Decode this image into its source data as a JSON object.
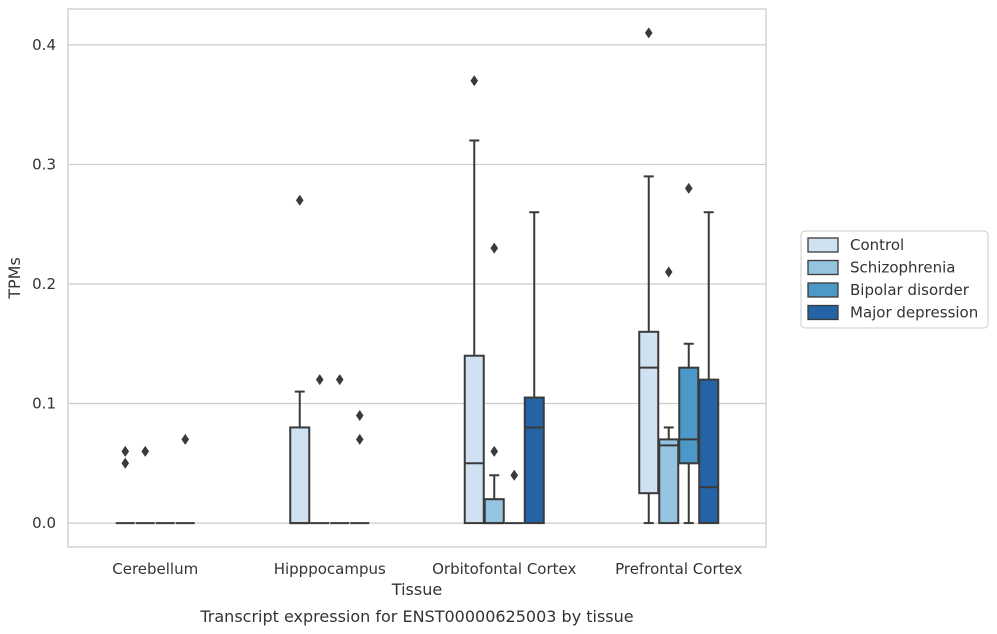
{
  "caption": "Transcript expression for ENST00000625003 by tissue",
  "chart_data": {
    "type": "box",
    "xlabel": "Tissue",
    "ylabel": "TPMs",
    "ylim": [
      -0.02,
      0.43
    ],
    "yticks": [
      0.0,
      0.1,
      0.2,
      0.3,
      0.4
    ],
    "ytick_labels": [
      "0.0",
      "0.1",
      "0.2",
      "0.3",
      "0.4"
    ],
    "grid": "horizontal",
    "legend_position": "right",
    "categories": [
      "Cerebellum",
      "Hipppocampus",
      "Orbitofontal Cortex",
      "Prefrontal Cortex"
    ],
    "series": [
      {
        "name": "Control",
        "color": "#d0e2f2",
        "boxes": [
          {
            "q1": 0,
            "median": 0,
            "q3": 0,
            "whislo": 0,
            "whishi": 0,
            "fliers": [
              0.06,
              0.05
            ]
          },
          {
            "q1": 0,
            "median": 0,
            "q3": 0.08,
            "whislo": 0,
            "whishi": 0.11,
            "fliers": [
              0.27
            ]
          },
          {
            "q1": 0,
            "median": 0.05,
            "q3": 0.14,
            "whislo": 0,
            "whishi": 0.32,
            "fliers": [
              0.37
            ]
          },
          {
            "q1": 0.025,
            "median": 0.13,
            "q3": 0.16,
            "whislo": 0,
            "whishi": 0.29,
            "fliers": [
              0.41
            ]
          }
        ]
      },
      {
        "name": "Schizophrenia",
        "color": "#94c4df",
        "boxes": [
          {
            "q1": 0,
            "median": 0,
            "q3": 0,
            "whislo": 0,
            "whishi": 0,
            "fliers": [
              0.06
            ]
          },
          {
            "q1": 0,
            "median": 0,
            "q3": 0,
            "whislo": 0,
            "whishi": 0,
            "fliers": [
              0.12
            ]
          },
          {
            "q1": 0,
            "median": 0,
            "q3": 0.02,
            "whislo": 0,
            "whishi": 0.04,
            "fliers": [
              0.06,
              0.23
            ]
          },
          {
            "q1": 0,
            "median": 0.065,
            "q3": 0.07,
            "whislo": 0,
            "whishi": 0.08,
            "fliers": [
              0.21
            ]
          }
        ]
      },
      {
        "name": "Bipolar disorder",
        "color": "#4b98c9",
        "boxes": [
          {
            "q1": 0,
            "median": 0,
            "q3": 0,
            "whislo": 0,
            "whishi": 0,
            "fliers": []
          },
          {
            "q1": 0,
            "median": 0,
            "q3": 0,
            "whislo": 0,
            "whishi": 0,
            "fliers": [
              0.12
            ]
          },
          {
            "q1": 0,
            "median": 0,
            "q3": 0,
            "whislo": 0,
            "whishi": 0,
            "fliers": [
              0.04
            ]
          },
          {
            "q1": 0.05,
            "median": 0.07,
            "q3": 0.13,
            "whislo": 0,
            "whishi": 0.15,
            "fliers": [
              0.28
            ]
          }
        ]
      },
      {
        "name": "Major depression",
        "color": "#2464a6",
        "boxes": [
          {
            "q1": 0,
            "median": 0,
            "q3": 0,
            "whislo": 0,
            "whishi": 0,
            "fliers": [
              0.07
            ]
          },
          {
            "q1": 0,
            "median": 0,
            "q3": 0,
            "whislo": 0,
            "whishi": 0,
            "fliers": [
              0.09,
              0.07
            ]
          },
          {
            "q1": 0,
            "median": 0.08,
            "q3": 0.105,
            "whislo": 0,
            "whishi": 0.26,
            "fliers": []
          },
          {
            "q1": 0,
            "median": 0.03,
            "q3": 0.12,
            "whislo": 0,
            "whishi": 0.26,
            "fliers": []
          }
        ]
      }
    ]
  }
}
